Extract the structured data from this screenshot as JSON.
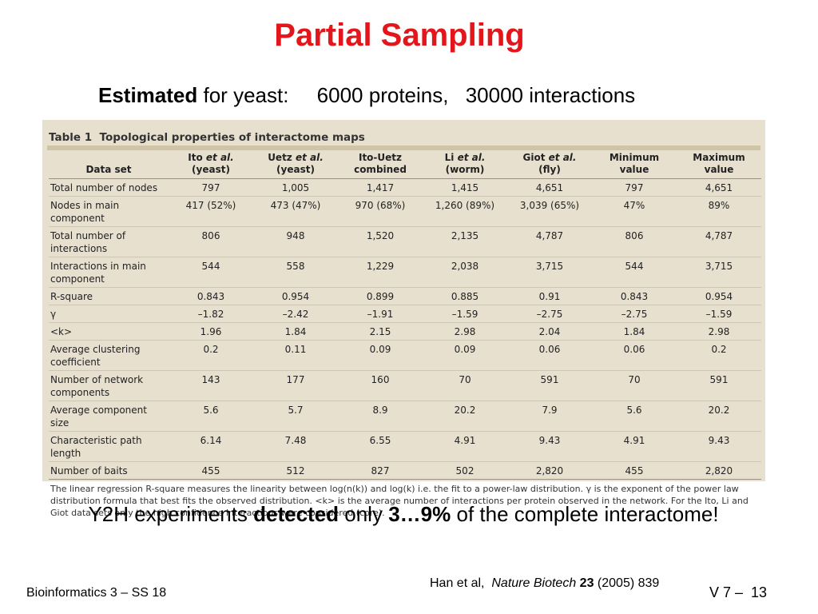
{
  "slide": {
    "title": "Partial Sampling",
    "subtitle": {
      "bold": "Estimated",
      "rest": "for yeast:",
      "proteins": "6000 proteins,",
      "interactions": "30000 interactions"
    },
    "conclusion": {
      "pre": "Y2H experiments",
      "bold1": "detected",
      "mid": "only",
      "bold2": "3…9%",
      "post": "of the complete interactome!"
    },
    "footer": {
      "course": "Bioinformatics 3 – SS 18",
      "citation_authors": "Han et al,",
      "citation_journal": "Nature Biotech",
      "citation_volume": "23",
      "citation_rest": "(2005) 839",
      "page_label": "V 7 –",
      "page_number": "13"
    }
  },
  "table": {
    "number": "Table 1",
    "title": "Topological properties of interactome maps",
    "headers": {
      "dataset": "Data set",
      "ito": {
        "name": "Ito",
        "etal": "et al.",
        "sub": "(yeast)"
      },
      "uetz": {
        "name": "Uetz",
        "etal": "et al.",
        "sub": "(yeast)"
      },
      "itouetz": {
        "name": "Ito-Uetz",
        "sub": "combined"
      },
      "li": {
        "name": "Li",
        "etal": "et al.",
        "sub": "(worm)"
      },
      "giot": {
        "name": "Giot",
        "etal": "et al.",
        "sub": "(fly)"
      },
      "min": {
        "name": "Minimum",
        "sub": "value"
      },
      "max": {
        "name": "Maximum",
        "sub": "value"
      }
    },
    "rows": [
      {
        "label": "Total number of nodes",
        "values": [
          "797",
          "1,005",
          "1,417",
          "1,415",
          "4,651",
          "797",
          "4,651"
        ]
      },
      {
        "label": "Nodes in main component",
        "values": [
          "417 (52%)",
          "473 (47%)",
          "970 (68%)",
          "1,260 (89%)",
          "3,039 (65%)",
          "47%",
          "89%"
        ]
      },
      {
        "label": "Total number of interactions",
        "values": [
          "806",
          "948",
          "1,520",
          "2,135",
          "4,787",
          "806",
          "4,787"
        ]
      },
      {
        "label": "Interactions in main component",
        "values": [
          "544",
          "558",
          "1,229",
          "2,038",
          "3,715",
          "544",
          "3,715"
        ]
      },
      {
        "label": "R-square",
        "values": [
          "0.843",
          "0.954",
          "0.899",
          "0.885",
          "0.91",
          "0.843",
          "0.954"
        ]
      },
      {
        "label": "γ",
        "values": [
          "–1.82",
          "–2.42",
          "–1.91",
          "–1.59",
          "–2.75",
          "–2.75",
          "–1.59"
        ]
      },
      {
        "label": "<k>",
        "values": [
          "1.96",
          "1.84",
          "2.15",
          "2.98",
          "2.04",
          "1.84",
          "2.98"
        ]
      },
      {
        "label": "Average clustering coefficient",
        "values": [
          "0.2",
          "0.11",
          "0.09",
          "0.09",
          "0.06",
          "0.06",
          "0.2"
        ]
      },
      {
        "label": "Number of network components",
        "values": [
          "143",
          "177",
          "160",
          "70",
          "591",
          "70",
          "591"
        ]
      },
      {
        "label": "Average component size",
        "values": [
          "5.6",
          "5.7",
          "8.9",
          "20.2",
          "7.9",
          "5.6",
          "20.2"
        ]
      },
      {
        "label": "Characteristic path length",
        "values": [
          "6.14",
          "7.48",
          "6.55",
          "4.91",
          "9.43",
          "4.91",
          "9.43"
        ]
      },
      {
        "label": "Number of baits",
        "values": [
          "455",
          "512",
          "827",
          "502",
          "2,820",
          "455",
          "2,820"
        ]
      }
    ],
    "footnote": "The linear regression R-square measures the linearity between log(n(k)) and log(k) i.e. the fit to a power-law distribution. γ is the exponent of the power law distribution formula that best fits the observed distribution. <k> is the average number of interactions per protein observed in the network. For the Ito, Li and Giot data sets only the high confidence interactions were considered (core)."
  }
}
